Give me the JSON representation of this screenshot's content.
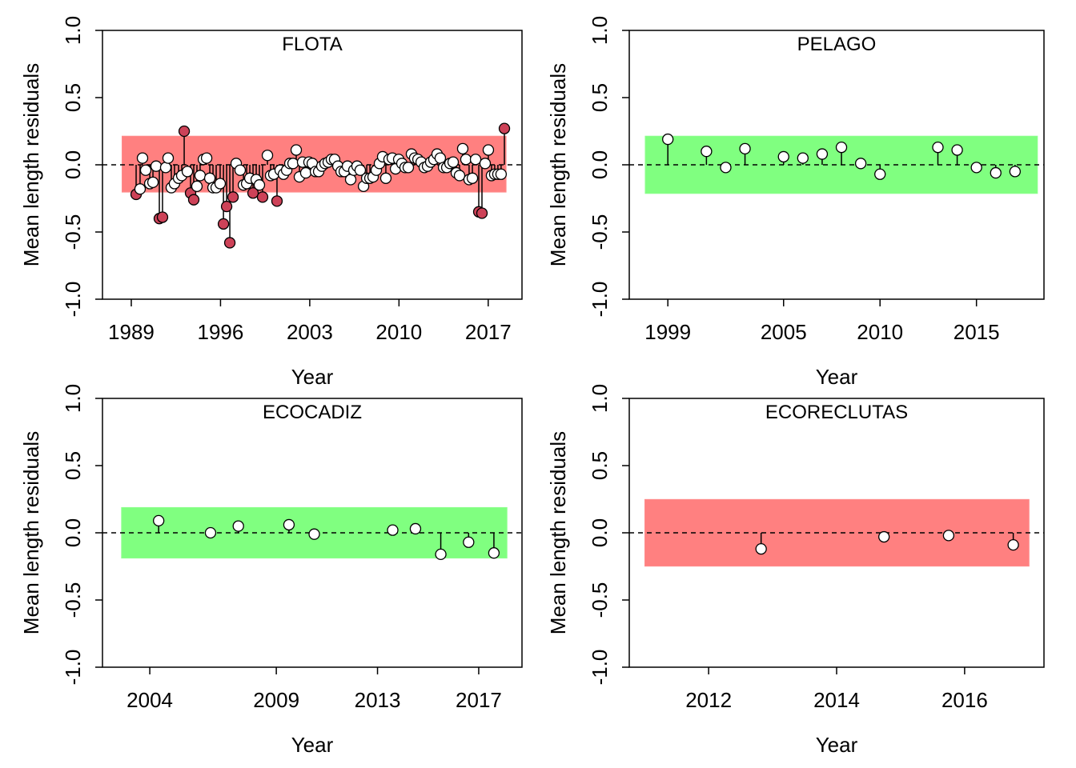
{
  "chart_data": [
    {
      "type": "scatter",
      "title": "FLOTA",
      "x_label": "Year",
      "y_label": "Mean length residuals",
      "x": [
        1989.38,
        1989.69,
        1989.88,
        1990.13,
        1990.45,
        1990.7,
        1990.95,
        1991.2,
        1991.45,
        1991.7,
        1991.89,
        1992.14,
        1992.39,
        1992.71,
        1992.96,
        1993.15,
        1993.4,
        1993.65,
        1993.9,
        1994.15,
        1994.4,
        1994.66,
        1994.91,
        1995.16,
        1995.41,
        1995.66,
        1995.97,
        1996.23,
        1996.48,
        1996.73,
        1996.98,
        1997.23,
        1997.54,
        1997.8,
        1998.05,
        1998.3,
        1998.55,
        1998.8,
        1999.05,
        1999.3,
        1999.68,
        1999.93,
        2000.18,
        2000.43,
        2000.68,
        2000.94,
        2001.19,
        2001.44,
        2001.69,
        2001.94,
        2002.19,
        2002.44,
        2002.69,
        2002.94,
        2003.2,
        2003.45,
        2003.7,
        2003.95,
        2004.2,
        2004.45,
        2004.7,
        2004.95,
        2005.21,
        2005.46,
        2005.71,
        2005.96,
        2006.21,
        2006.46,
        2006.71,
        2006.96,
        2007.22,
        2007.47,
        2007.72,
        2007.97,
        2008.22,
        2008.47,
        2008.72,
        2008.97,
        2009.22,
        2009.48,
        2009.73,
        2009.98,
        2010.23,
        2010.48,
        2010.73,
        2010.98,
        2011.23,
        2011.49,
        2011.74,
        2011.99,
        2012.24,
        2012.49,
        2012.74,
        2012.99,
        2013.24,
        2013.5,
        2013.75,
        2014.0,
        2014.25,
        2014.5,
        2014.75,
        2015.0,
        2015.25,
        2015.5,
        2015.76,
        2016.01,
        2016.26,
        2016.51,
        2016.76,
        2017.01,
        2017.26,
        2017.51,
        2017.76,
        2018.01,
        2018.27
      ],
      "values": [
        -0.22,
        -0.18,
        0.05,
        -0.04,
        -0.14,
        -0.13,
        -0.01,
        -0.4,
        -0.39,
        -0.02,
        0.05,
        -0.17,
        -0.14,
        -0.1,
        -0.08,
        0.25,
        -0.05,
        -0.21,
        -0.26,
        -0.16,
        -0.08,
        0.04,
        0.05,
        -0.1,
        -0.17,
        -0.17,
        -0.14,
        -0.44,
        -0.31,
        -0.58,
        -0.24,
        0.01,
        -0.04,
        -0.15,
        -0.14,
        -0.1,
        -0.21,
        -0.11,
        -0.15,
        -0.24,
        0.07,
        -0.08,
        -0.07,
        -0.27,
        -0.04,
        -0.07,
        -0.04,
        0.01,
        0.01,
        0.11,
        -0.09,
        0.02,
        -0.06,
        0.02,
        0.01,
        -0.05,
        -0.05,
        -0.01,
        0.01,
        0.02,
        0.04,
        0.04,
        -0.01,
        -0.05,
        -0.05,
        -0.01,
        -0.11,
        -0.04,
        -0.01,
        -0.04,
        -0.16,
        -0.1,
        -0.1,
        -0.09,
        -0.04,
        0.01,
        0.06,
        -0.1,
        0.04,
        0.05,
        -0.03,
        0.04,
        0.01,
        -0.02,
        -0.02,
        0.08,
        0.05,
        0.04,
        0.02,
        -0.02,
        -0.01,
        0.02,
        0.04,
        0.08,
        0.05,
        -0.02,
        -0.02,
        0.01,
        0.02,
        -0.06,
        -0.08,
        0.12,
        0.04,
        -0.11,
        -0.1,
        0.04,
        -0.35,
        -0.36,
        0.01,
        0.11,
        -0.08,
        -0.07,
        -0.07,
        -0.07,
        0.27
      ],
      "xlim": [
        1986.74,
        2019.65
      ],
      "ylim": [
        -1,
        1
      ],
      "xticks": [
        1989,
        1996,
        2003,
        2010,
        2017
      ],
      "yticks": [
        {
          "value": -1,
          "label": "-1.0"
        },
        -0.5,
        {
          "value": 0,
          "label": "0.0"
        },
        0.5,
        {
          "value": 1,
          "label": "1.0"
        }
      ],
      "band_xlim": [
        1988.31,
        2018.37
      ],
      "band_ylim": [
        -0.2,
        0.21
      ],
      "band_color": "#ff8080",
      "point_color": "#ffffff",
      "outlier_color": "#cd4258"
    },
    {
      "type": "scatter",
      "title": "PELAGO",
      "x_label": "Year",
      "y_label": "Mean length residuals",
      "x": [
        1999,
        2001,
        2002,
        2003,
        2005,
        2006,
        2007,
        2008,
        2009,
        2010,
        2013,
        2014,
        2015,
        2016,
        2017
      ],
      "values": [
        0.19,
        0.1,
        -0.02,
        0.12,
        0.06,
        0.05,
        0.08,
        0.13,
        0.01,
        -0.07,
        0.13,
        0.11,
        -0.02,
        -0.06,
        -0.05
      ],
      "xlim": [
        1997,
        2018.5
      ],
      "ylim": [
        -1,
        1
      ],
      "xticks": [
        1999,
        2005,
        2010,
        2015
      ],
      "yticks": [
        {
          "value": -1,
          "label": "-1.0"
        },
        -0.5,
        {
          "value": 0,
          "label": "0.0"
        },
        0.5,
        {
          "value": 1,
          "label": "1.0"
        }
      ],
      "band_xlim": [
        1997.85,
        2018.14
      ],
      "band_ylim": [
        -0.21,
        0.21
      ],
      "band_color": "#80ff80",
      "point_color": "#ffffff",
      "outlier_color": "#cd4258"
    },
    {
      "type": "scatter",
      "title": "ECOCADIZ",
      "x_label": "Year",
      "y_label": "Mean length residuals",
      "x": [
        2004.35,
        2006.4,
        2007.5,
        2009.5,
        2010.5,
        2013.6,
        2014.5,
        2015.5,
        2016.6,
        2017.6
      ],
      "values": [
        0.09,
        0.0,
        0.05,
        0.06,
        -0.01,
        0.02,
        0.03,
        -0.16,
        -0.07,
        -0.15
      ],
      "xlim": [
        2002.13,
        2018.71
      ],
      "ylim": [
        -1,
        1
      ],
      "xticks": [
        2004,
        2009,
        2013,
        2017
      ],
      "yticks": [
        {
          "value": -1,
          "label": "-1.0"
        },
        -0.5,
        {
          "value": 0,
          "label": "0.0"
        },
        0.5,
        {
          "value": 1,
          "label": "1.0"
        }
      ],
      "band_xlim": [
        2002.9,
        2018.1
      ],
      "band_ylim": [
        -0.185,
        0.185
      ],
      "band_color": "#80ff80",
      "point_color": "#ffffff",
      "outlier_color": "#cd4258"
    },
    {
      "type": "scatter",
      "title": "ECORECLUTAS",
      "x_label": "Year",
      "y_label": "Mean length residuals",
      "x": [
        2012.82,
        2014.74,
        2015.75,
        2016.76
      ],
      "values": [
        -0.12,
        -0.03,
        -0.02,
        -0.09
      ],
      "xlim": [
        2010.76,
        2017.24
      ],
      "ylim": [
        -1,
        1
      ],
      "xticks": [
        2012,
        2014,
        2016
      ],
      "yticks": [
        {
          "value": -1,
          "label": "-1.0"
        },
        -0.5,
        {
          "value": 0,
          "label": "0.0"
        },
        0.5,
        {
          "value": 1,
          "label": "1.0"
        }
      ],
      "band_xlim": [
        2011.01,
        2017.0
      ],
      "band_ylim": [
        -0.245,
        0.245
      ],
      "band_color": "#ff8080",
      "point_color": "#ffffff",
      "outlier_color": "#cd4258"
    }
  ]
}
